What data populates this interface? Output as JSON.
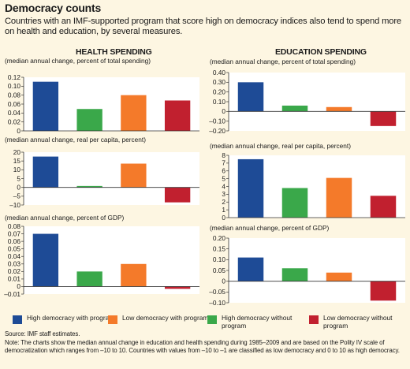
{
  "title": "Democracy counts",
  "subtitle": "Countries with an IMF-supported program that score high on democracy indices also tend to spend more on health and education, by several measures.",
  "headers": {
    "health": "HEALTH SPENDING",
    "education": "EDUCATION SPENDING"
  },
  "colors": {
    "High democracy with program": "#1e4b96",
    "High democracy without program": "#3aa84a",
    "Low democracy with program": "#f47a2a",
    "Low democracy without program": "#c1202f"
  },
  "legend": [
    "High democracy with program",
    "Low democracy with program",
    "High democracy without program",
    "Low democracy without program"
  ],
  "chart_data": [
    {
      "id": "health_pct_total",
      "type": "bar",
      "ylabel": "(median annual change, percent of total spending)",
      "categories": [
        "High democracy with program",
        "High democracy without program",
        "Low democracy with program",
        "Low democracy without program"
      ],
      "values": [
        0.11,
        0.049,
        0.08,
        0.068
      ],
      "ylim": [
        0,
        0.12
      ],
      "ticks": [
        "0",
        "0.02",
        "0.04",
        "0.06",
        "0.08",
        "0.10",
        "0.12"
      ]
    },
    {
      "id": "education_pct_total",
      "type": "bar",
      "ylabel": "(median annual change, percent of total spending)",
      "categories": [
        "High democracy with program",
        "High democracy without program",
        "Low democracy with program",
        "Low democracy without program"
      ],
      "values": [
        0.3,
        0.06,
        0.045,
        -0.15
      ],
      "ylim": [
        -0.2,
        0.4
      ],
      "ticks": [
        "–0.20",
        "–0.10",
        "0",
        "0.10",
        "0.20",
        "0.30",
        "0.40"
      ]
    },
    {
      "id": "health_real_per_capita",
      "type": "bar",
      "ylabel": "(median annual change, real per capita, percent)",
      "categories": [
        "High democracy with program",
        "High democracy without program",
        "Low democracy with program",
        "Low democracy without program"
      ],
      "values": [
        17.5,
        0.8,
        13.5,
        -8.5
      ],
      "ylim": [
        -10,
        20
      ],
      "ticks": [
        "–10",
        "–5",
        "0",
        "5",
        "10",
        "15",
        "20"
      ]
    },
    {
      "id": "education_real_per_capita",
      "type": "bar",
      "ylabel": "(median annual change, real per capita, percent)",
      "categories": [
        "High democracy with program",
        "High democracy without program",
        "Low democracy with program",
        "Low democracy without program"
      ],
      "values": [
        7.5,
        3.8,
        5.1,
        2.8
      ],
      "ylim": [
        0,
        8
      ],
      "ticks": [
        "0",
        "1",
        "2",
        "3",
        "4",
        "5",
        "6",
        "7",
        "8"
      ]
    },
    {
      "id": "health_pct_gdp",
      "type": "bar",
      "ylabel": "(median annual change, percent of GDP)",
      "categories": [
        "High democracy with program",
        "High democracy without program",
        "Low democracy with program",
        "Low democracy without program"
      ],
      "values": [
        0.07,
        0.02,
        0.03,
        -0.003
      ],
      "ylim": [
        -0.01,
        0.08
      ],
      "ticks": [
        "–0.01",
        "0",
        "0.01",
        "0.02",
        "0.03",
        "0.04",
        "0.05",
        "0.06",
        "0.07",
        "0.08"
      ]
    },
    {
      "id": "education_pct_gdp",
      "type": "bar",
      "ylabel": "(median annual change, percent of GDP)",
      "categories": [
        "High democracy with program",
        "High democracy without program",
        "Low democracy with program",
        "Low democracy without program"
      ],
      "values": [
        0.11,
        0.06,
        0.04,
        -0.09
      ],
      "ylim": [
        -0.1,
        0.2
      ],
      "ticks": [
        "–0.10",
        "–0.05",
        "0",
        "0.05",
        "0.10",
        "0.15",
        "0.20"
      ]
    }
  ],
  "source": "Source: IMF staff estimates.",
  "note": "Note: The charts show the median annual change in education and health spending during 1985–2009 and are based on the Polity IV scale of democratization which ranges from –10 to 10. Countries with values  from  –10 to –1 are classified as low democracy and 0 to 10 as high democracy."
}
